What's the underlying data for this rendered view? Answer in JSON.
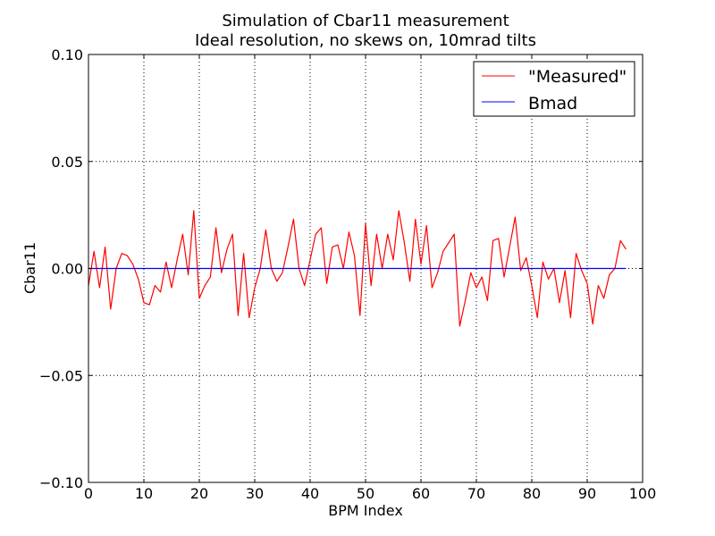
{
  "chart_data": {
    "type": "line",
    "title": "Simulation of Cbar11 measurement",
    "subtitle": "Ideal resolution, no skews on, 10mrad tilts",
    "xlabel": "BPM Index",
    "ylabel": "Cbar11",
    "xlim": [
      0,
      100
    ],
    "ylim": [
      -0.1,
      0.1
    ],
    "xticks": [
      0,
      10,
      20,
      30,
      40,
      50,
      60,
      70,
      80,
      90,
      100
    ],
    "xtick_labels": [
      "0",
      "10",
      "20",
      "30",
      "40",
      "50",
      "60",
      "70",
      "80",
      "90",
      "100"
    ],
    "yticks": [
      0.1,
      0.05,
      0.0,
      -0.05,
      -0.1
    ],
    "ytick_labels": [
      "0.10",
      "0.05",
      "0.00",
      "−0.05",
      "−0.10"
    ],
    "grid": true,
    "legend_position": "upper right",
    "series": [
      {
        "name": "\"Measured\"",
        "color": "#ff0000",
        "x": [
          0,
          1,
          2,
          3,
          4,
          5,
          6,
          7,
          8,
          9,
          10,
          11,
          12,
          13,
          14,
          15,
          16,
          17,
          18,
          19,
          20,
          21,
          22,
          23,
          24,
          25,
          26,
          27,
          28,
          29,
          30,
          31,
          32,
          33,
          34,
          35,
          36,
          37,
          38,
          39,
          40,
          41,
          42,
          43,
          44,
          45,
          46,
          47,
          48,
          49,
          50,
          51,
          52,
          53,
          54,
          55,
          56,
          57,
          58,
          59,
          60,
          61,
          62,
          63,
          64,
          65,
          66,
          67,
          68,
          69,
          70,
          71,
          72,
          73,
          74,
          75,
          76,
          77,
          78,
          79,
          80,
          81,
          82,
          83,
          84,
          85,
          86,
          87,
          88,
          89,
          90,
          91,
          92,
          93,
          94,
          95,
          96,
          97
        ],
        "y": [
          -0.008,
          0.008,
          -0.009,
          0.01,
          -0.019,
          0.0,
          0.007,
          0.006,
          0.002,
          -0.005,
          -0.016,
          -0.017,
          -0.008,
          -0.011,
          0.003,
          -0.009,
          0.004,
          0.016,
          -0.003,
          0.027,
          -0.014,
          -0.008,
          -0.004,
          0.019,
          -0.002,
          0.009,
          0.016,
          -0.022,
          0.007,
          -0.023,
          -0.009,
          0.0,
          0.018,
          0.0,
          -0.006,
          -0.002,
          0.01,
          0.023,
          0.0,
          -0.008,
          0.004,
          0.016,
          0.019,
          -0.007,
          0.01,
          0.011,
          0.0,
          0.017,
          0.006,
          -0.022,
          0.021,
          -0.008,
          0.016,
          0.0,
          0.016,
          0.004,
          0.027,
          0.012,
          -0.006,
          0.023,
          0.002,
          0.02,
          -0.009,
          -0.002,
          0.008,
          0.012,
          0.016,
          -0.027,
          -0.015,
          -0.002,
          -0.009,
          -0.004,
          -0.015,
          0.013,
          0.014,
          -0.004,
          0.01,
          0.024,
          -0.001,
          0.005,
          -0.008,
          -0.023,
          0.003,
          -0.005,
          0.0,
          -0.016,
          -0.001,
          -0.023,
          0.007,
          -0.001,
          -0.007,
          -0.026,
          -0.008,
          -0.014,
          -0.003,
          0.0,
          0.013,
          0.009
        ]
      },
      {
        "name": "Bmad",
        "color": "#0000ff",
        "x": [
          0,
          97
        ],
        "y": [
          0.0,
          0.0
        ]
      }
    ]
  }
}
